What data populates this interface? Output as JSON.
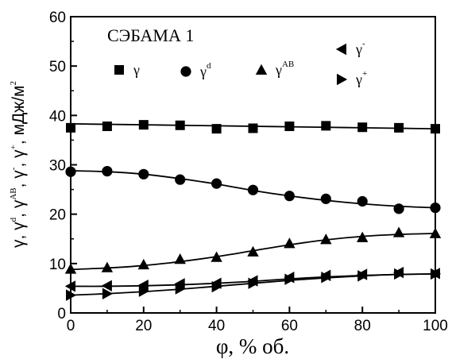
{
  "chart_data": {
    "type": "scatter",
    "annotation": "СЭБАМА 1",
    "xlabel": "φ, % об.",
    "ylabel": "γ, γ^d, γ^AB, γ^-, γ^+, мДж/м²",
    "ylabel_parts": {
      "g": "γ",
      "gd": "γ",
      "gd_sup": "d",
      "gab": "γ",
      "gab_sup": "AB",
      "gm": "γ",
      "gm_sup": "-",
      "gp": "γ",
      "gp_sup": "+",
      "unit": ", мДж/м",
      "unit_sup": "2",
      "sep": ", "
    },
    "xlim": [
      0,
      100
    ],
    "ylim": [
      0,
      60
    ],
    "xticks": [
      "0",
      "20",
      "40",
      "60",
      "80",
      "100"
    ],
    "yticks": [
      "0",
      "10",
      "20",
      "30",
      "40",
      "50",
      "60"
    ],
    "x": [
      0,
      10,
      20,
      30,
      40,
      50,
      60,
      70,
      80,
      90,
      100
    ],
    "series": [
      {
        "name": "γ",
        "sup": "",
        "marker": "square",
        "values": [
          37.5,
          37.8,
          38.1,
          38.0,
          37.3,
          37.4,
          37.8,
          37.9,
          37.6,
          37.5,
          37.3
        ],
        "fit": [
          38.3,
          38.2,
          38.1,
          38.0,
          37.9,
          37.8,
          37.7,
          37.6,
          37.5,
          37.4,
          37.3
        ]
      },
      {
        "name": "γ",
        "sup": "d",
        "marker": "circle",
        "values": [
          28.6,
          28.7,
          28.1,
          27.0,
          26.2,
          24.9,
          23.7,
          23.1,
          22.6,
          21.1,
          21.3
        ],
        "fit": [
          28.8,
          28.6,
          28.1,
          27.2,
          26.1,
          24.8,
          23.7,
          22.8,
          22.1,
          21.6,
          21.3
        ]
      },
      {
        "name": "γ",
        "sup": "AB",
        "marker": "triangle-up",
        "values": [
          8.9,
          9.2,
          9.8,
          10.9,
          11.3,
          12.4,
          14.1,
          14.9,
          15.3,
          16.3,
          16.1
        ],
        "fit": [
          8.8,
          9.1,
          9.6,
          10.4,
          11.4,
          12.6,
          13.8,
          14.8,
          15.5,
          15.9,
          16.1
        ]
      },
      {
        "name": "γ",
        "sup": "-",
        "marker": "triangle-left",
        "values": [
          5.4,
          5.5,
          5.6,
          5.9,
          6.0,
          6.5,
          7.2,
          7.6,
          7.8,
          8.2,
          8.0
        ],
        "fit": [
          5.4,
          5.4,
          5.5,
          5.7,
          6.0,
          6.4,
          6.9,
          7.3,
          7.6,
          7.8,
          7.9
        ]
      },
      {
        "name": "γ",
        "sup": "+",
        "marker": "triangle-right",
        "values": [
          3.6,
          3.9,
          4.4,
          4.9,
          5.3,
          6.0,
          6.8,
          7.2,
          7.5,
          7.9,
          7.9
        ],
        "fit": [
          3.6,
          3.9,
          4.3,
          4.8,
          5.4,
          6.0,
          6.6,
          7.1,
          7.5,
          7.8,
          7.9
        ]
      }
    ],
    "grid": false,
    "legend_position": "top-right"
  }
}
